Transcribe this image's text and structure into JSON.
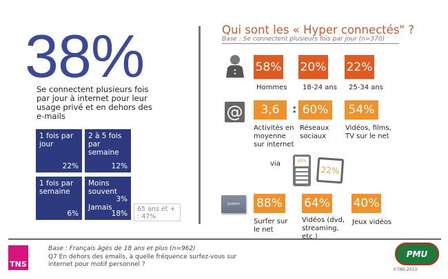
{
  "left": {
    "big_stat": "38%",
    "subtitle": "Se connectent plusieurs fois par jour à internet pour leur usage privé et en dehors des e-mails",
    "frequencies": [
      {
        "label": "1 fois par jour",
        "value": "22%"
      },
      {
        "label": "2 à 5 fois par semaine",
        "value": "12%"
      },
      {
        "label": "1 fois par semaine",
        "value": "6%"
      },
      {
        "label": "Moins souvent",
        "value": "3%",
        "label2": "Jamais",
        "value2": "18%"
      }
    ],
    "note": "65 ans et + : 47%"
  },
  "right": {
    "title": "Qui sont les « Hyper connectés\" ?",
    "base": "Base : Se connectent plusieurs fois par jour (n=370)",
    "profile": [
      {
        "value": "58%",
        "label": "Hommes"
      },
      {
        "value": "20%",
        "label": "18-24 ans"
      },
      {
        "value": "22%",
        "label": "25-34 ans"
      }
    ],
    "internet": [
      {
        "value": "3,6",
        "label": "Activités en moyenne sur internet"
      },
      {
        "value": "60%",
        "label": "Réseaux sociaux"
      },
      {
        "value": "54%",
        "label": "Vidéos, films, TV sur le net"
      }
    ],
    "separator": ":",
    "via": "via",
    "mobile": "45%",
    "tablet": "22%",
    "leisure_icon": "Loisirs",
    "leisure": [
      {
        "value": "88%",
        "label": "Surfer sur le net"
      },
      {
        "value": "64%",
        "label": "Vidéos (dvd, streaming, etc.)"
      },
      {
        "value": "40%",
        "label": "Jeux vidéos"
      }
    ]
  },
  "footer": {
    "logo": "TNS",
    "base": "Base : Français âgés de 18 ans et plus (n=962)",
    "question": "Q7 En dehors des emails, à quelle fréquence surfez-vous sur internet pour motif personnel ?",
    "partner_logo": "PMU",
    "copyright": "©TNS 2013"
  },
  "colors": {
    "blue": "#2e3a80",
    "dark_orange": "#e25a1d",
    "light_orange": "#f0922c",
    "tns_pink": "#d8137d",
    "pmu_green": "#1e7a3a"
  }
}
